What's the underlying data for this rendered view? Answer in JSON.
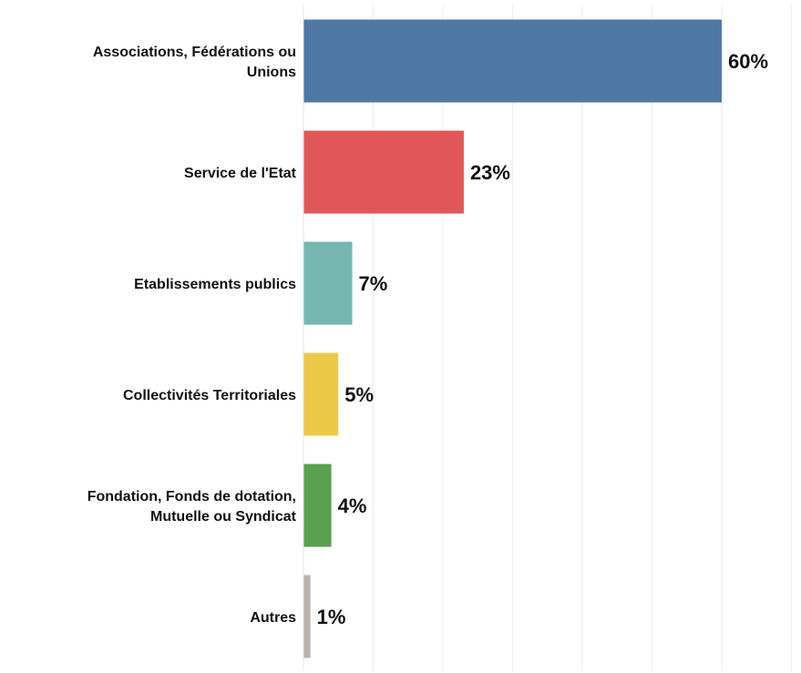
{
  "chart_data": {
    "type": "bar",
    "orientation": "horizontal",
    "categories": [
      "Associations, Fédérations ou Unions",
      "Service de l'Etat",
      "Etablissements publics",
      "Collectivités Territoriales",
      "Fondation, Fonds de dotation, Mutuelle ou Syndicat",
      "Autres"
    ],
    "category_lines": [
      [
        "Associations, Fédérations ou",
        "Unions"
      ],
      [
        "Service de l'Etat"
      ],
      [
        "Etablissements publics"
      ],
      [
        "Collectivités Territoriales"
      ],
      [
        "Fondation, Fonds de dotation,",
        "Mutuelle ou Syndicat"
      ],
      [
        "Autres"
      ]
    ],
    "values": [
      60,
      23,
      7,
      5,
      4,
      1
    ],
    "value_labels": [
      "60%",
      "23%",
      "7%",
      "5%",
      "4%",
      "1%"
    ],
    "colors": [
      "#4e79a7",
      "#e15759",
      "#76b7b2",
      "#edc948",
      "#59a14f",
      "#bab0ac"
    ],
    "xlim": [
      0,
      70
    ],
    "grid": true,
    "legend": "none"
  }
}
